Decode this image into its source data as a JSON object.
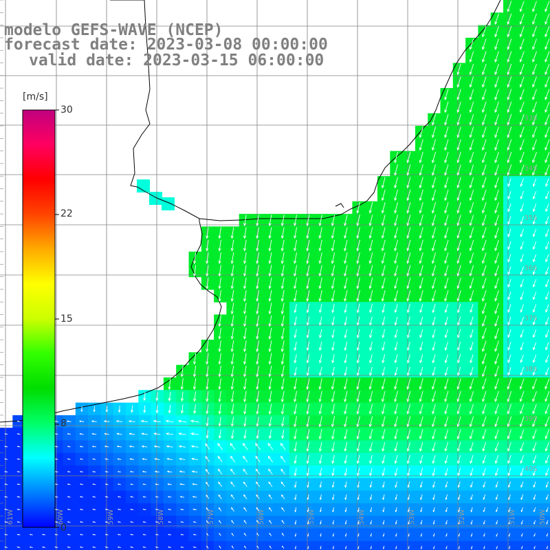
{
  "title": {
    "line1": "modelo GEFS-WAVE (NCEP)",
    "line2": "forecast date: 2023-03-08 00:00:00",
    "line3": "valid date: 2023-03-15 06:00:00"
  },
  "colorbar": {
    "unit": "[m/s]",
    "ticks": [
      "30",
      "22",
      "15",
      "8",
      "0"
    ],
    "tick_values": [
      30,
      22,
      15,
      8,
      0
    ],
    "min": 0,
    "max": 30,
    "colors": [
      "#0000ff",
      "#0080ff",
      "#00ffff",
      "#00ff66",
      "#00dd00",
      "#33ff00",
      "#ccff00",
      "#ffff00",
      "#ffaa00",
      "#ff4400",
      "#ff0000",
      "#ff0060",
      "#c0007f"
    ]
  },
  "map": {
    "lat_labels": [
      "33S",
      "34S",
      "35S",
      "36S",
      "37S",
      "38S",
      "39S",
      "40S"
    ],
    "lon_labels": [
      "61W",
      "60W",
      "59W",
      "58W",
      "57W",
      "56W",
      "55W",
      "54W",
      "53W",
      "52W",
      "51W",
      "50W"
    ],
    "grid_color": "#808080",
    "coast_color": "#000000",
    "arrow_color": "#ffffff"
  }
}
